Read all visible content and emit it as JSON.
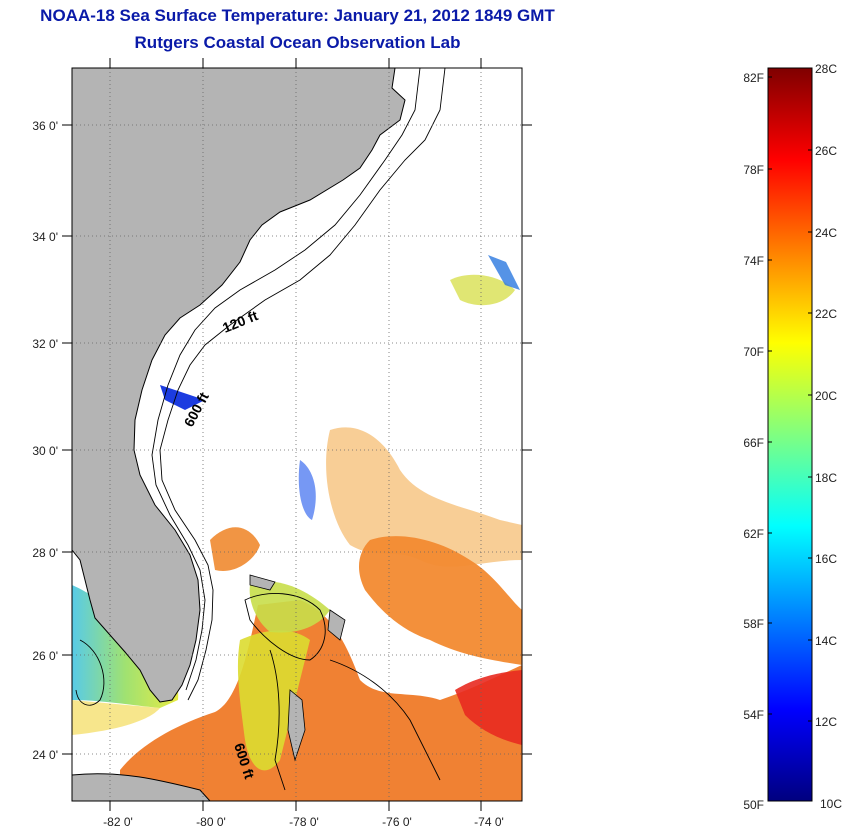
{
  "header": {
    "title": "NOAA-18 Sea Surface Temperature:  January 21, 2012 1849 GMT",
    "subtitle": "Rutgers Coastal Ocean Observation Lab"
  },
  "map": {
    "lat_labels": [
      "36 0'",
      "34 0'",
      "32 0'",
      "30 0'",
      "28 0'",
      "26 0'",
      "24 0'"
    ],
    "lon_labels": [
      "-82 0'",
      "-80 0'",
      "-78 0'",
      "-76 0'",
      "-74 0'"
    ],
    "contour_labels": [
      "120 ft",
      "600 ft",
      "600 ft"
    ],
    "colors": {
      "land": "#b4b4b4",
      "ocean_nodata": "#ffffff",
      "coastline": "#000000"
    }
  },
  "colorbar": {
    "fahrenheit_labels": [
      "82F",
      "78F",
      "74F",
      "70F",
      "66F",
      "62F",
      "58F",
      "54F",
      "50F"
    ],
    "celsius_labels": [
      "28C",
      "26C",
      "24C",
      "22C",
      "20C",
      "18C",
      "16C",
      "14C",
      "12C",
      "10C"
    ],
    "range_c": [
      10,
      28
    ],
    "colormap": "jet"
  }
}
